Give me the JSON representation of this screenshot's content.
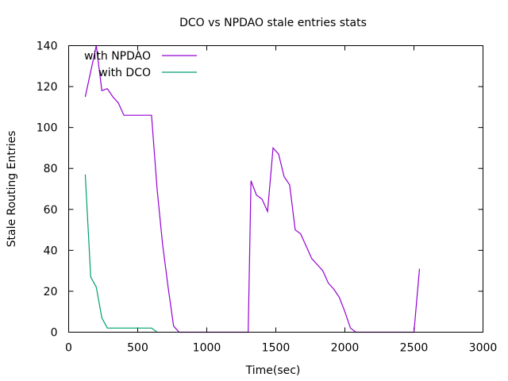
{
  "chart_data": {
    "type": "line",
    "title": "DCO vs NPDAO stale entries stats",
    "xlabel": "Time(sec)",
    "ylabel": "Stale Routing Entries",
    "xlim": [
      0,
      3000
    ],
    "ylim": [
      0,
      140
    ],
    "xticks": [
      0,
      500,
      1000,
      1500,
      2000,
      2500,
      3000
    ],
    "yticks": [
      0,
      20,
      40,
      60,
      80,
      100,
      120,
      140
    ],
    "grid": false,
    "legend_position": "top-left",
    "series": [
      {
        "name": "with NPDAO",
        "color": "#9400d3",
        "points": [
          [
            120,
            115
          ],
          [
            200,
            140
          ],
          [
            240,
            118
          ],
          [
            280,
            119
          ],
          [
            320,
            115
          ],
          [
            360,
            112
          ],
          [
            400,
            106
          ],
          [
            450,
            106
          ],
          [
            500,
            106
          ],
          [
            550,
            106
          ],
          [
            600,
            106
          ],
          [
            640,
            70
          ],
          [
            680,
            43
          ],
          [
            720,
            22
          ],
          [
            760,
            3
          ],
          [
            800,
            0
          ],
          [
            1300,
            0
          ],
          [
            1320,
            74
          ],
          [
            1360,
            67
          ],
          [
            1400,
            65
          ],
          [
            1440,
            59
          ],
          [
            1480,
            90
          ],
          [
            1520,
            87
          ],
          [
            1560,
            76
          ],
          [
            1600,
            72
          ],
          [
            1640,
            50
          ],
          [
            1680,
            48
          ],
          [
            1720,
            42
          ],
          [
            1760,
            36
          ],
          [
            1800,
            33
          ],
          [
            1840,
            30
          ],
          [
            1880,
            24
          ],
          [
            1920,
            21
          ],
          [
            1960,
            17
          ],
          [
            2000,
            10
          ],
          [
            2040,
            2
          ],
          [
            2080,
            0
          ],
          [
            2500,
            0
          ],
          [
            2540,
            31
          ]
        ]
      },
      {
        "name": "with DCO",
        "color": "#009e73",
        "points": [
          [
            120,
            77
          ],
          [
            160,
            27
          ],
          [
            200,
            22
          ],
          [
            240,
            7
          ],
          [
            280,
            2
          ],
          [
            320,
            2
          ],
          [
            360,
            2
          ],
          [
            400,
            2
          ],
          [
            450,
            2
          ],
          [
            500,
            2
          ],
          [
            550,
            2
          ],
          [
            600,
            2
          ],
          [
            640,
            0
          ]
        ]
      }
    ]
  }
}
